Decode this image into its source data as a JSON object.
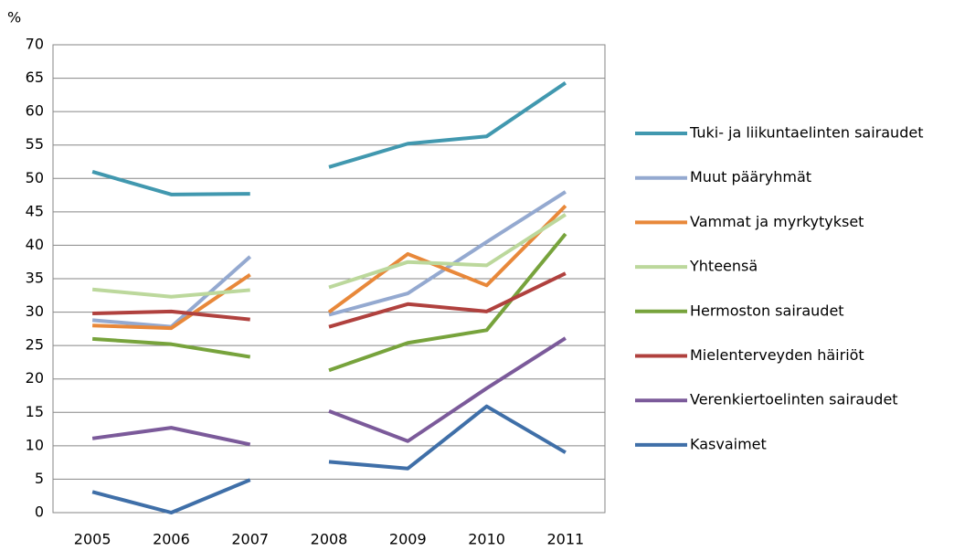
{
  "chart_data": {
    "type": "line",
    "y_label": "%",
    "categories": [
      "2005",
      "2006",
      "2007",
      "2008",
      "2009",
      "2010",
      "2011"
    ],
    "break_after_index": 2,
    "series": [
      {
        "name": "Tuki- ja liikuntaelinten sairaudet",
        "color": "#4198af",
        "values": [
          51,
          47.6,
          47.7,
          51.7,
          55.2,
          56.3,
          64.3
        ]
      },
      {
        "name": "Muut pääryhmät",
        "color": "#94a9d0",
        "values": [
          28.8,
          27.8,
          38.3,
          29.6,
          32.8,
          40.5,
          48
        ]
      },
      {
        "name": "Vammat ja myrkytykset",
        "color": "#e8883a",
        "values": [
          28,
          27.6,
          35.6,
          30,
          38.7,
          34,
          45.9
        ]
      },
      {
        "name": "Yhteensä",
        "color": "#bcd89c",
        "values": [
          33.4,
          32.3,
          33.3,
          33.7,
          37.5,
          37,
          44.6
        ]
      },
      {
        "name": "Hermoston sairaudet",
        "color": "#77a33c",
        "values": [
          26,
          25.2,
          23.3,
          21.3,
          25.4,
          27.3,
          41.7
        ]
      },
      {
        "name": "Mielenterveyden häiriöt",
        "color": "#b0413e",
        "values": [
          29.8,
          30.1,
          28.9,
          27.8,
          31.2,
          30.1,
          35.8
        ]
      },
      {
        "name": "Verenkiertoelinten sairaudet",
        "color": "#7b5a9a",
        "values": [
          11.1,
          12.7,
          10.2,
          15.2,
          10.7,
          18.6,
          26.1
        ]
      },
      {
        "name": "Kasvaimet",
        "color": "#3f6fa8",
        "values": [
          3.1,
          0,
          4.9,
          7.6,
          6.6,
          15.9,
          9
        ]
      }
    ],
    "ylim": [
      0,
      70
    ],
    "yticks": [
      0,
      5,
      10,
      15,
      20,
      25,
      30,
      35,
      40,
      45,
      50,
      55,
      60,
      65,
      70
    ],
    "grid": true,
    "legend": "right"
  }
}
